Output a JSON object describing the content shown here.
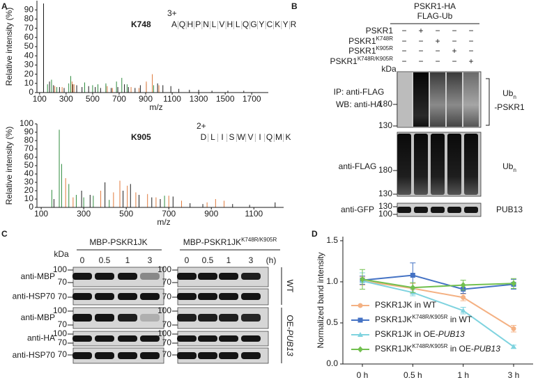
{
  "panel_labels": [
    "A",
    "B",
    "C",
    "D"
  ],
  "chart_data": [
    {
      "type": "stem",
      "title": "K748",
      "charge": "3+",
      "sequence": [
        "A",
        "Q",
        "H",
        "P",
        "N",
        "L",
        "V",
        "H",
        "L",
        "Q",
        "G",
        "Y",
        "C",
        "K",
        "Y",
        "R"
      ],
      "sequence_colors": [
        "#1a1a1a",
        "#1a1a1a",
        "#1a1a1a",
        "#1a1a1a",
        "#1a1a1a",
        "#1a1a1a",
        "#1a1a1a",
        "#1a1a1a",
        "#1a1a1a",
        "#1a1a1a",
        "#1a1a1a",
        "#1a1a1a",
        "#1a1a1a",
        "#e0201b",
        "#1a1a1a",
        "#1a1a1a"
      ],
      "xlabel": "m/z",
      "ylabel": "Relative intensity (%)",
      "xlim": [
        80,
        1825
      ],
      "ylim": [
        0,
        100
      ],
      "xticks": [
        100,
        300,
        500,
        700,
        900,
        1100,
        1300,
        1500,
        1700
      ],
      "yticks": [
        0,
        10,
        20,
        30,
        40,
        50,
        60,
        70,
        80,
        90
      ],
      "series": [
        {
          "color": "#1a1a1a",
          "x": [
            130,
            175,
            205,
            250,
            285,
            350,
            380,
            420,
            470,
            520,
            560,
            600,
            640,
            690,
            740,
            770,
            820,
            860,
            905,
            990,
            1030,
            1090,
            1150,
            1230,
            1300,
            1400,
            1520,
            1640
          ],
          "values": [
            97,
            12,
            8,
            6,
            5,
            9,
            8,
            6,
            7,
            6,
            5,
            8,
            5,
            6,
            9,
            6,
            5,
            8,
            10,
            10,
            8,
            7,
            4,
            3,
            3,
            2,
            2,
            2
          ]
        },
        {
          "color": "#2e8b3e",
          "x": [
            160,
            190,
            230,
            320,
            335,
            440,
            500,
            540,
            600,
            680,
            720,
            760,
            960
          ],
          "values": [
            9,
            14,
            6,
            10,
            18,
            11,
            8,
            9,
            10,
            12,
            16,
            9,
            8
          ]
        },
        {
          "color": "#e07a3c",
          "x": [
            215,
            270,
            345,
            360,
            610,
            650,
            790,
            850,
            905,
            950,
            1000
          ],
          "values": [
            7,
            6,
            12,
            9,
            7,
            5,
            6,
            5,
            12,
            20,
            8
          ]
        }
      ]
    },
    {
      "type": "stem",
      "title": "K905",
      "charge": "2+",
      "sequence": [
        "D",
        "L",
        "I",
        "S",
        "W",
        "V",
        "I",
        "Q",
        "M",
        "K"
      ],
      "sequence_colors": [
        "#1a1a1a",
        "#1a1a1a",
        "#1a1a1a",
        "#1a1a1a",
        "#1a1a1a",
        "#1a1a1a",
        "#1a1a1a",
        "#1a1a1a",
        "#1a1a1a",
        "#e0201b"
      ],
      "xlabel": "m/z",
      "ylabel": "Relative intensity (%)",
      "xlim": [
        80,
        1240
      ],
      "ylim": [
        0,
        100
      ],
      "xticks": [
        100,
        300,
        500,
        700,
        900,
        1100
      ],
      "yticks": [
        0,
        10,
        20,
        30,
        40,
        50,
        60,
        70,
        80,
        90,
        100
      ],
      "series": [
        {
          "color": "#1a1a1a",
          "x": [
            160,
            290,
            330,
            400,
            485,
            520,
            560,
            620,
            660,
            720,
            800,
            860,
            1000,
            1080,
            1200
          ],
          "values": [
            10,
            20,
            15,
            30,
            20,
            28,
            15,
            12,
            10,
            13,
            5,
            4,
            4,
            3,
            6
          ]
        },
        {
          "color": "#2e8b3e",
          "x": [
            150,
            185,
            196,
            230,
            265,
            300,
            345,
            420,
            680
          ],
          "values": [
            21,
            93,
            52,
            28,
            15,
            12,
            14,
            9,
            14
          ]
        },
        {
          "color": "#e07a3c",
          "x": [
            215,
            250,
            380,
            440,
            470,
            505,
            545,
            600,
            640,
            700,
            760,
            880,
            920,
            960
          ],
          "values": [
            35,
            12,
            20,
            18,
            32,
            26,
            18,
            16,
            12,
            14,
            8,
            6,
            10,
            8
          ]
        }
      ]
    },
    {
      "type": "line",
      "ylabel": "Normalized band intensity",
      "categories": [
        "0 h",
        "0.5 h",
        "1 h",
        "3 h"
      ],
      "ylim": [
        0,
        1.55
      ],
      "yticks": [
        {
          "value": 0,
          "label": "0.0"
        },
        0.5,
        {
          "value": 1,
          "label": "1.0"
        },
        1.5
      ],
      "legend": "lower left",
      "series": [
        {
          "name": "PSKR1JK in WT",
          "color": "#f4b183",
          "marker": "circle",
          "values": [
            1.01,
            0.92,
            0.81,
            0.43
          ],
          "errors": [
            0.05,
            0.06,
            0.04,
            0.04
          ]
        },
        {
          "name": [
            {
              "text": "PSKR1JK"
            },
            {
              "text": "K748R/K905R",
              "sup": true
            },
            {
              "text": " in WT"
            }
          ],
          "color": "#4472c4",
          "marker": "square",
          "values": [
            1.02,
            1.08,
            0.91,
            0.97
          ],
          "errors": [
            0.05,
            0.15,
            0.05,
            0.06
          ]
        },
        {
          "name": [
            {
              "text": "PSKR1JK in OE-"
            },
            {
              "text": "PUB13",
              "italic": true
            }
          ],
          "color": "#7fd3df",
          "marker": "triangle",
          "values": [
            1.01,
            0.87,
            0.65,
            0.21
          ],
          "errors": [
            0.1,
            0.04,
            0.04,
            0.02
          ]
        },
        {
          "name": [
            {
              "text": "PSKR1JK"
            },
            {
              "text": "K748R/K905R",
              "sup": true
            },
            {
              "text": " in OE-"
            },
            {
              "text": "PUB13",
              "italic": true
            }
          ],
          "color": "#72c04f",
          "marker": "diamond",
          "values": [
            1.03,
            0.93,
            0.96,
            0.98
          ],
          "errors": [
            0.12,
            0.06,
            0.06,
            0.06
          ]
        }
      ]
    }
  ],
  "blot_B": {
    "header": [
      "PSKR1-HA",
      "FLAG-Ub"
    ],
    "rows": [
      {
        "label": "PSKR1",
        "signs": [
          "−",
          "+",
          "−",
          "−",
          "−"
        ]
      },
      {
        "label": [
          {
            "text": "PSKR1"
          },
          {
            "text": "K748R",
            "sup": true
          }
        ],
        "signs": [
          "−",
          "−",
          "+",
          "−",
          "−"
        ]
      },
      {
        "label": [
          {
            "text": "PSKR1"
          },
          {
            "text": "K905R",
            "sup": true
          }
        ],
        "signs": [
          "−",
          "−",
          "−",
          "+",
          "−"
        ]
      },
      {
        "label": [
          {
            "text": "PSKR1"
          },
          {
            "text": "K748R/K905R",
            "sup": true
          }
        ],
        "signs": [
          "−",
          "−",
          "−",
          "−",
          "+"
        ]
      }
    ],
    "kda": "kDa",
    "blots": [
      {
        "labels": [
          "IP: anti-FLAG",
          "WB: anti-HA"
        ],
        "markers": [
          180,
          130
        ],
        "right": [
          [
            {
              "text": "Ub"
            },
            {
              "text": "n",
              "sub": true
            }
          ],
          "-PSKR1"
        ]
      },
      {
        "labels": [
          "anti-FLAG"
        ],
        "markers": [
          180,
          130
        ],
        "right": [
          [
            {
              "text": "Ub"
            },
            {
              "text": "n",
              "sub": true
            }
          ]
        ]
      },
      {
        "labels": [
          "anti-GFP"
        ],
        "markers": [
          130,
          100
        ],
        "right": [
          "PUB13"
        ]
      }
    ]
  },
  "blot_C": {
    "header": [
      "MBP-PSKR1JK",
      [
        {
          "text": "MBP-PSKR1JK"
        },
        {
          "text": "K748R/K905R",
          "sup": true
        }
      ]
    ],
    "kda": "kDa",
    "times": [
      0,
      0.5,
      1,
      3
    ],
    "unit": "(h)",
    "rows": [
      {
        "label": "anti-MBP",
        "markers": [
          100,
          70
        ]
      },
      {
        "label": "anti-HSP70",
        "markers": [
          70
        ]
      },
      {
        "label": "anti-MBP",
        "markers": [
          100,
          70
        ]
      },
      {
        "label": "anti-HA",
        "markers": [
          100,
          70
        ]
      },
      {
        "label": "anti-HSP70",
        "markers": [
          70
        ]
      }
    ],
    "groups": [
      "WT",
      [
        {
          "text": "OE-"
        },
        {
          "text": "PUB13",
          "italic": true
        }
      ]
    ]
  }
}
